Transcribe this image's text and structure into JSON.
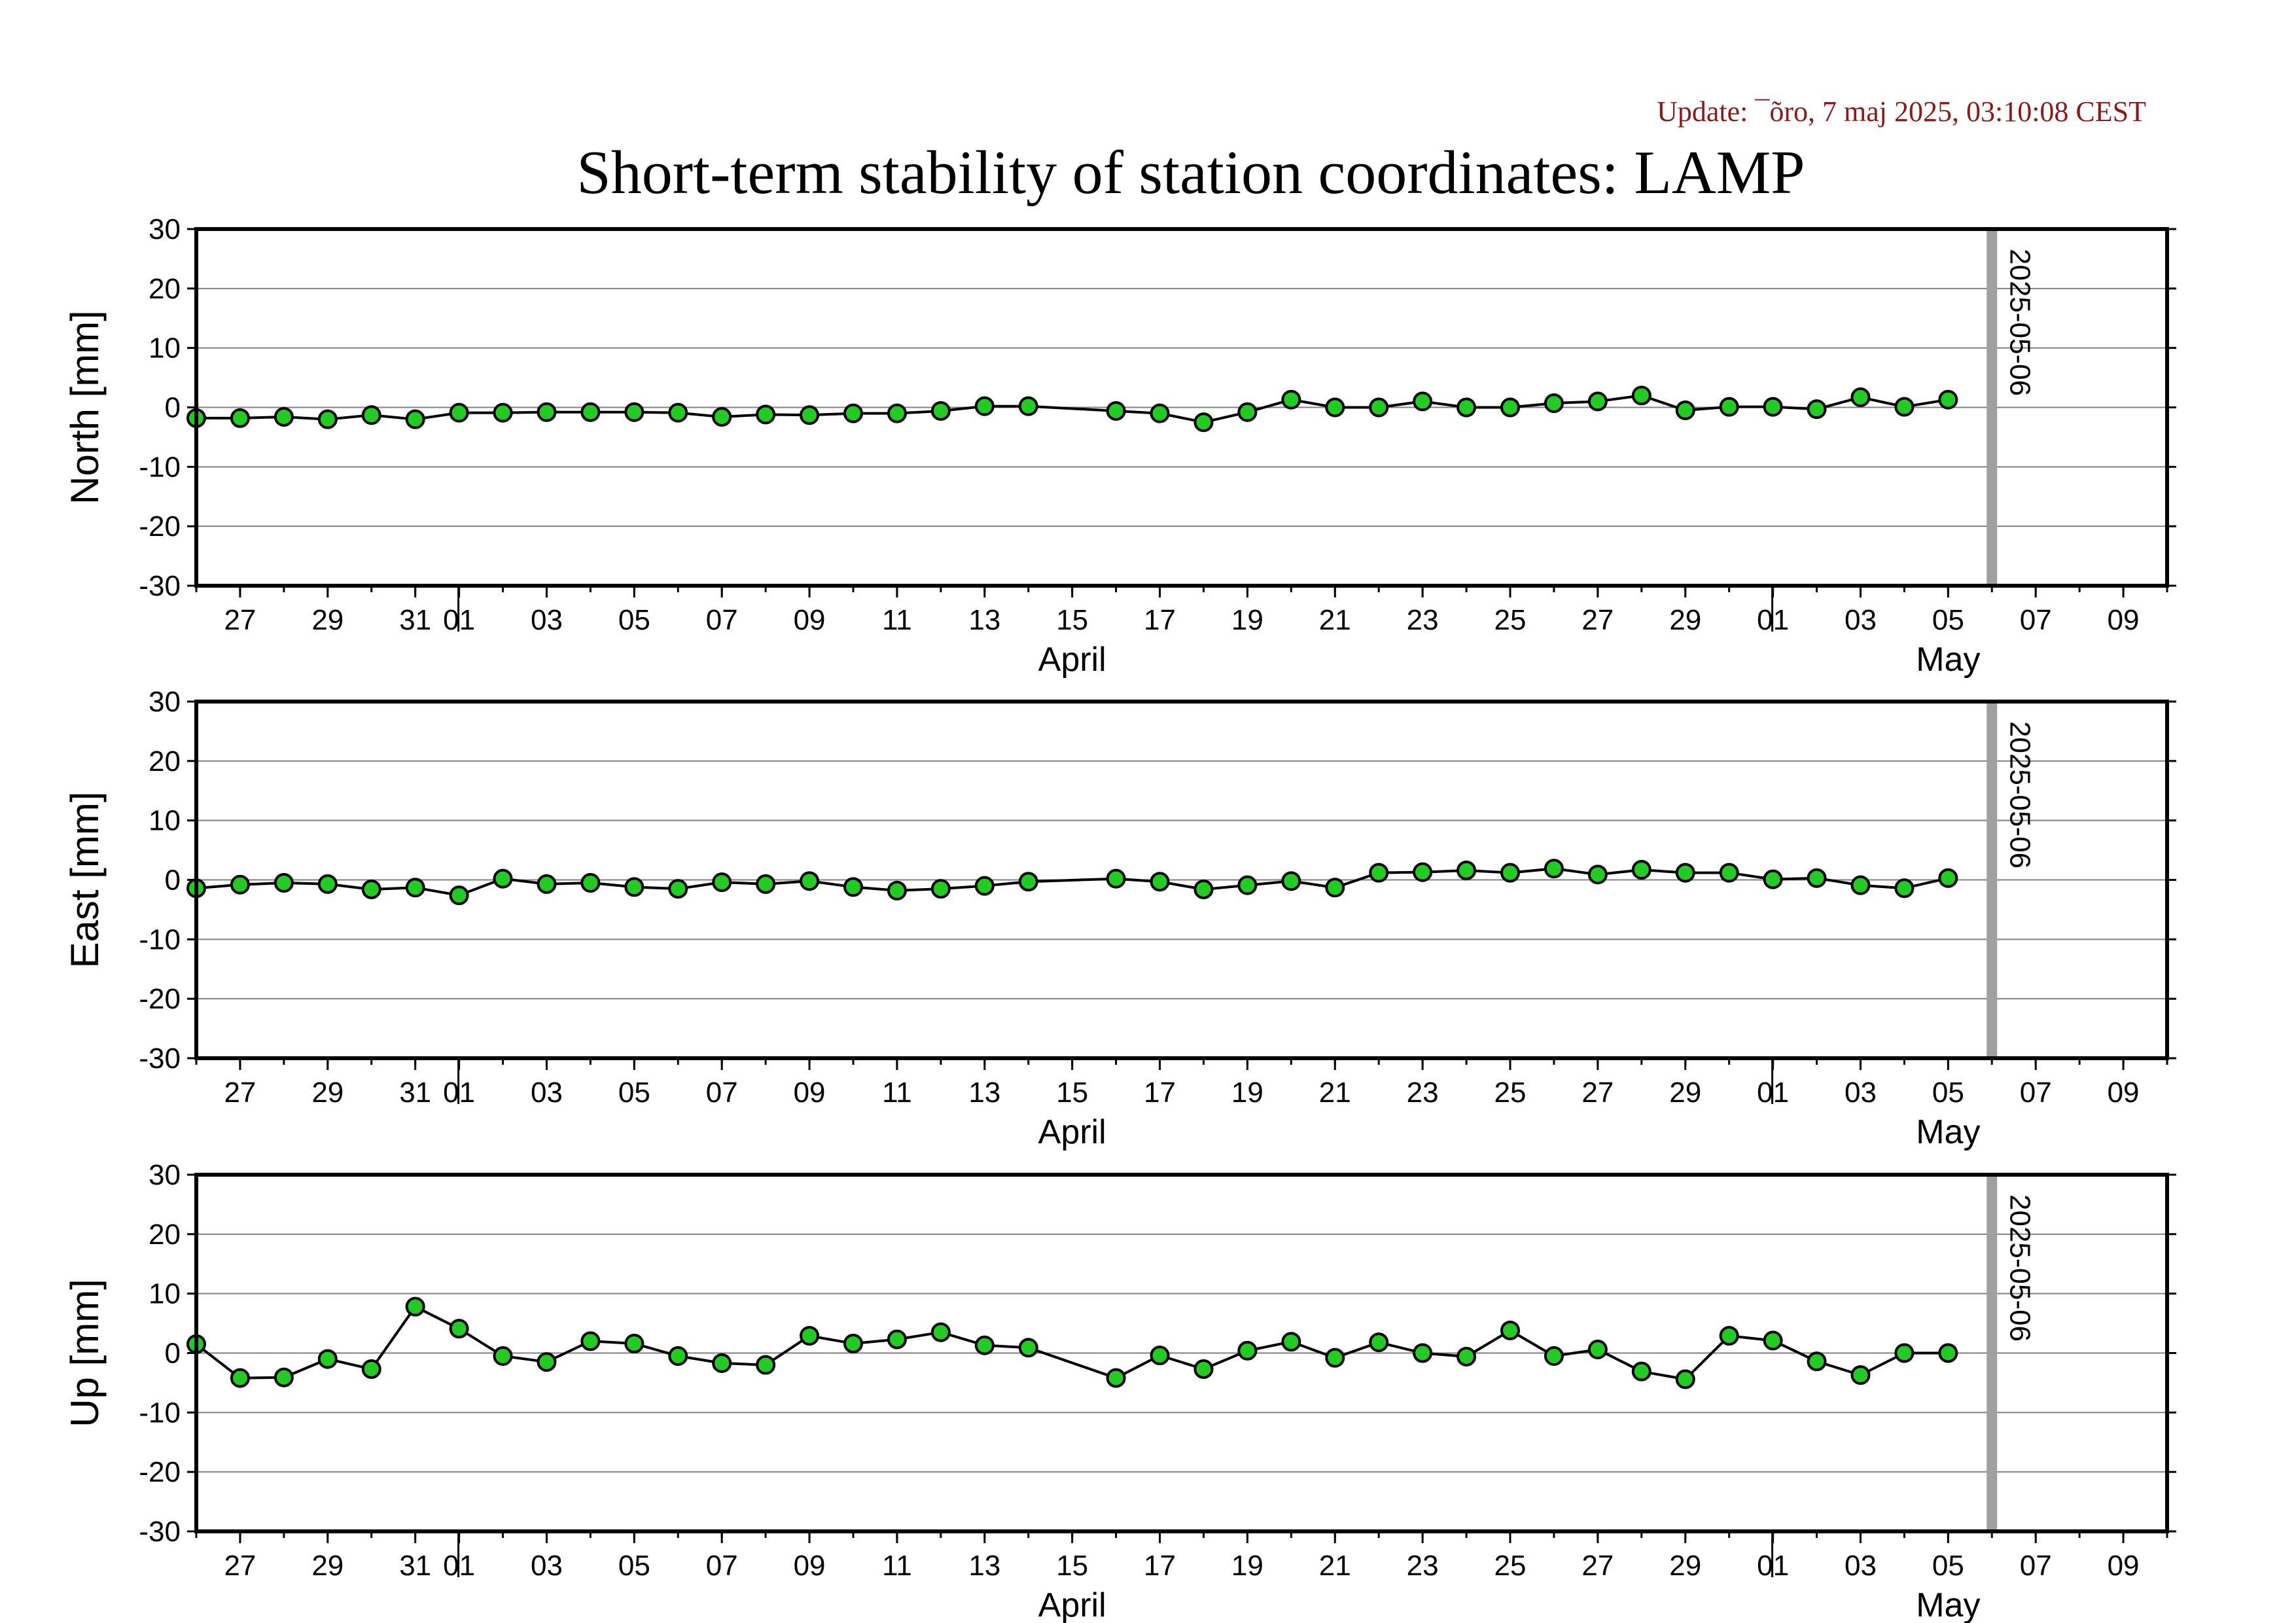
{
  "update_text": "Update: ¯õro, 7 maj 2025, 03:10:08 CEST",
  "title": "Short-term stability of station coordinates: LAMP",
  "chart_data": {
    "type": "line",
    "x_axis": {
      "start": "2025-03-26",
      "end": "2025-05-10",
      "tick_labels": [
        "27",
        "29",
        "31",
        "01",
        "03",
        "05",
        "07",
        "09",
        "11",
        "13",
        "15",
        "17",
        "19",
        "21",
        "23",
        "25",
        "27",
        "29",
        "01",
        "03",
        "05",
        "07",
        "09"
      ],
      "month_labels": [
        "April",
        "May"
      ]
    },
    "reference_line": {
      "date": "2025-05-06",
      "label": "2025-05-06",
      "color": "#a0a0a0"
    },
    "marker_color": "#22cc22",
    "line_color": "#000000",
    "panels": [
      {
        "ylabel": "North [mm]",
        "ylim": [
          -30,
          30
        ],
        "yticks": [
          -30,
          -20,
          -10,
          0,
          10,
          20,
          30
        ],
        "grid": true,
        "points": [
          [
            "2025-03-26",
            -1.8
          ],
          [
            "2025-03-27",
            -1.8
          ],
          [
            "2025-03-28",
            -1.6
          ],
          [
            "2025-03-29",
            -2.0
          ],
          [
            "2025-03-30",
            -1.3
          ],
          [
            "2025-03-31",
            -2.0
          ],
          [
            "2025-04-01",
            -0.9
          ],
          [
            "2025-04-02",
            -0.9
          ],
          [
            "2025-04-03",
            -0.8
          ],
          [
            "2025-04-04",
            -0.8
          ],
          [
            "2025-04-05",
            -0.8
          ],
          [
            "2025-04-06",
            -0.9
          ],
          [
            "2025-04-07",
            -1.6
          ],
          [
            "2025-04-08",
            -1.2
          ],
          [
            "2025-04-09",
            -1.3
          ],
          [
            "2025-04-10",
            -1.0
          ],
          [
            "2025-04-11",
            -1.0
          ],
          [
            "2025-04-12",
            -0.6
          ],
          [
            "2025-04-13",
            0.2
          ],
          [
            "2025-04-14",
            0.2
          ],
          [
            "2025-04-16",
            -0.6
          ],
          [
            "2025-04-17",
            -1.0
          ],
          [
            "2025-04-18",
            -2.5
          ],
          [
            "2025-04-19",
            -0.8
          ],
          [
            "2025-04-20",
            1.3
          ],
          [
            "2025-04-21",
            0.0
          ],
          [
            "2025-04-22",
            0.0
          ],
          [
            "2025-04-23",
            1.0
          ],
          [
            "2025-04-24",
            0.0
          ],
          [
            "2025-04-25",
            0.0
          ],
          [
            "2025-04-26",
            0.7
          ],
          [
            "2025-04-27",
            1.0
          ],
          [
            "2025-04-28",
            2.0
          ],
          [
            "2025-04-29",
            -0.5
          ],
          [
            "2025-04-30",
            0.1
          ],
          [
            "2025-05-01",
            0.1
          ],
          [
            "2025-05-02",
            -0.3
          ],
          [
            "2025-05-03",
            1.7
          ],
          [
            "2025-05-04",
            0.1
          ],
          [
            "2025-05-05",
            1.3
          ]
        ]
      },
      {
        "ylabel": "East [mm]",
        "ylim": [
          -30,
          30
        ],
        "yticks": [
          -30,
          -20,
          -10,
          0,
          10,
          20,
          30
        ],
        "grid": true,
        "points": [
          [
            "2025-03-26",
            -1.4
          ],
          [
            "2025-03-27",
            -0.8
          ],
          [
            "2025-03-28",
            -0.5
          ],
          [
            "2025-03-29",
            -0.7
          ],
          [
            "2025-03-30",
            -1.6
          ],
          [
            "2025-03-31",
            -1.3
          ],
          [
            "2025-04-01",
            -2.6
          ],
          [
            "2025-04-02",
            0.2
          ],
          [
            "2025-04-03",
            -0.7
          ],
          [
            "2025-04-04",
            -0.5
          ],
          [
            "2025-04-05",
            -1.2
          ],
          [
            "2025-04-06",
            -1.5
          ],
          [
            "2025-04-07",
            -0.4
          ],
          [
            "2025-04-08",
            -0.7
          ],
          [
            "2025-04-09",
            -0.2
          ],
          [
            "2025-04-10",
            -1.2
          ],
          [
            "2025-04-11",
            -1.8
          ],
          [
            "2025-04-12",
            -1.5
          ],
          [
            "2025-04-13",
            -1.0
          ],
          [
            "2025-04-14",
            -0.3
          ],
          [
            "2025-04-16",
            0.2
          ],
          [
            "2025-04-17",
            -0.3
          ],
          [
            "2025-04-18",
            -1.6
          ],
          [
            "2025-04-19",
            -0.9
          ],
          [
            "2025-04-20",
            -0.2
          ],
          [
            "2025-04-21",
            -1.3
          ],
          [
            "2025-04-22",
            1.2
          ],
          [
            "2025-04-23",
            1.3
          ],
          [
            "2025-04-24",
            1.6
          ],
          [
            "2025-04-25",
            1.2
          ],
          [
            "2025-04-26",
            1.9
          ],
          [
            "2025-04-27",
            0.9
          ],
          [
            "2025-04-28",
            1.7
          ],
          [
            "2025-04-29",
            1.2
          ],
          [
            "2025-04-30",
            1.2
          ],
          [
            "2025-05-01",
            0.1
          ],
          [
            "2025-05-02",
            0.3
          ],
          [
            "2025-05-03",
            -0.9
          ],
          [
            "2025-05-04",
            -1.4
          ],
          [
            "2025-05-05",
            0.3
          ]
        ]
      },
      {
        "ylabel": "Up [mm]",
        "ylim": [
          -30,
          30
        ],
        "yticks": [
          -30,
          -20,
          -10,
          0,
          10,
          20,
          30
        ],
        "grid": true,
        "points": [
          [
            "2025-03-26",
            1.5
          ],
          [
            "2025-03-27",
            -4.2
          ],
          [
            "2025-03-28",
            -4.1
          ],
          [
            "2025-03-29",
            -1.0
          ],
          [
            "2025-03-30",
            -2.7
          ],
          [
            "2025-03-31",
            7.8
          ],
          [
            "2025-04-01",
            4.1
          ],
          [
            "2025-04-02",
            -0.5
          ],
          [
            "2025-04-03",
            -1.5
          ],
          [
            "2025-04-04",
            2.0
          ],
          [
            "2025-04-05",
            1.6
          ],
          [
            "2025-04-06",
            -0.5
          ],
          [
            "2025-04-07",
            -1.7
          ],
          [
            "2025-04-08",
            -2.0
          ],
          [
            "2025-04-09",
            2.9
          ],
          [
            "2025-04-10",
            1.6
          ],
          [
            "2025-04-11",
            2.3
          ],
          [
            "2025-04-12",
            3.5
          ],
          [
            "2025-04-13",
            1.3
          ],
          [
            "2025-04-14",
            0.9
          ],
          [
            "2025-04-16",
            -4.2
          ],
          [
            "2025-04-17",
            -0.4
          ],
          [
            "2025-04-18",
            -2.7
          ],
          [
            "2025-04-19",
            0.4
          ],
          [
            "2025-04-20",
            1.9
          ],
          [
            "2025-04-21",
            -0.8
          ],
          [
            "2025-04-22",
            1.8
          ],
          [
            "2025-04-23",
            0.0
          ],
          [
            "2025-04-24",
            -0.6
          ],
          [
            "2025-04-25",
            3.8
          ],
          [
            "2025-04-26",
            -0.5
          ],
          [
            "2025-04-27",
            0.6
          ],
          [
            "2025-04-28",
            -3.1
          ],
          [
            "2025-04-29",
            -4.4
          ],
          [
            "2025-04-30",
            2.9
          ],
          [
            "2025-05-01",
            2.1
          ],
          [
            "2025-05-02",
            -1.4
          ],
          [
            "2025-05-03",
            -3.7
          ],
          [
            "2025-05-04",
            0.0
          ],
          [
            "2025-05-05",
            0.0
          ]
        ]
      }
    ]
  }
}
